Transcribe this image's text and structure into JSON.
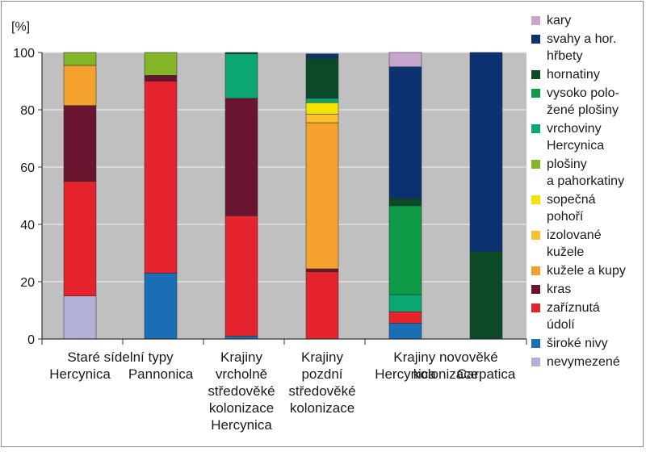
{
  "chart_data": {
    "type": "bar",
    "stacked": true,
    "unit_label": "[%]",
    "ylim": [
      0,
      100
    ],
    "yticks": [
      0,
      20,
      40,
      60,
      80,
      100
    ],
    "grid": true,
    "plot_background": "#c0c0c0",
    "legend_position": "right",
    "groups": [
      {
        "label_lines": [
          "Staré sídelní typy"
        ]
      },
      {
        "label_lines": [
          "Krajiny",
          "vrcholně",
          "středověké",
          "kolonizace",
          "Hercynica"
        ]
      },
      {
        "label_lines": [
          "Krajiny",
          "pozdní",
          "středověké",
          "kolonizace"
        ]
      },
      {
        "label_lines": [
          "Krajiny novověké",
          "kolonizace"
        ]
      }
    ],
    "categories": [
      {
        "label": "Hercynica",
        "group": 0
      },
      {
        "label": "Pannonica",
        "group": 0
      },
      {
        "label": "",
        "group": 1
      },
      {
        "label": "",
        "group": 2
      },
      {
        "label": "Hercynica",
        "group": 3
      },
      {
        "label": "Carpatica",
        "group": 3
      }
    ],
    "series": [
      {
        "name": "nevymezené",
        "legend_lines": [
          "nevymezené"
        ],
        "color": "#b1b1d8",
        "values": [
          15,
          0,
          0,
          0,
          0,
          0
        ]
      },
      {
        "name": "široké nivy",
        "legend_lines": [
          "široké nivy"
        ],
        "color": "#1a6fb4",
        "values": [
          0,
          23,
          1,
          0,
          5.5,
          0
        ]
      },
      {
        "name": "zaříznutá údolí",
        "legend_lines": [
          "zaříznutá",
          "údolí"
        ],
        "color": "#e4232c",
        "values": [
          40,
          67,
          42,
          23.5,
          4,
          0
        ]
      },
      {
        "name": "kras",
        "legend_lines": [
          "kras"
        ],
        "color": "#6a1530",
        "values": [
          26.5,
          2,
          41,
          1,
          0,
          0
        ]
      },
      {
        "name": "kužele a kupy",
        "legend_lines": [
          "kužele a kupy"
        ],
        "color": "#f4a22d",
        "values": [
          14,
          0,
          0,
          51,
          0,
          0
        ]
      },
      {
        "name": "izolované kužele",
        "legend_lines": [
          "izolované",
          "kužele"
        ],
        "color": "#fbc02d",
        "values": [
          0,
          0,
          0,
          3,
          0,
          0
        ]
      },
      {
        "name": "sopečná pohoří",
        "legend_lines": [
          "sopečná",
          "pohoří"
        ],
        "color": "#f2e400",
        "values": [
          0,
          0,
          0,
          4,
          0,
          0
        ]
      },
      {
        "name": "plošiny a pahorkatiny",
        "legend_lines": [
          "plošiny",
          "a pahorkatiny"
        ],
        "color": "#84b527",
        "values": [
          4.5,
          8,
          0,
          0,
          0,
          0
        ]
      },
      {
        "name": "vrchoviny Hercynica",
        "legend_lines": [
          "vrchoviny",
          "Hercynica"
        ],
        "color": "#0aa774",
        "values": [
          0,
          0,
          15.5,
          1.5,
          6,
          0
        ]
      },
      {
        "name": "vysoko položené plošiny",
        "legend_lines": [
          "vysoko polo-",
          "žené plošiny"
        ],
        "color": "#0e9a46",
        "values": [
          0,
          0,
          0,
          0,
          31,
          0
        ]
      },
      {
        "name": "hornatiny",
        "legend_lines": [
          "hornatiny"
        ],
        "color": "#0b4a26",
        "values": [
          0,
          0,
          0.5,
          14,
          2.5,
          30.5
        ]
      },
      {
        "name": "svahy a hor. hřbety",
        "legend_lines": [
          "svahy a hor.",
          "hřbety"
        ],
        "color": "#0d3272",
        "values": [
          0,
          0,
          0,
          1.5,
          46,
          69.5
        ]
      },
      {
        "name": "kary",
        "legend_lines": [
          "kary"
        ],
        "color": "#c6a6cd",
        "values": [
          0,
          0,
          0,
          0,
          5,
          0
        ]
      }
    ]
  }
}
